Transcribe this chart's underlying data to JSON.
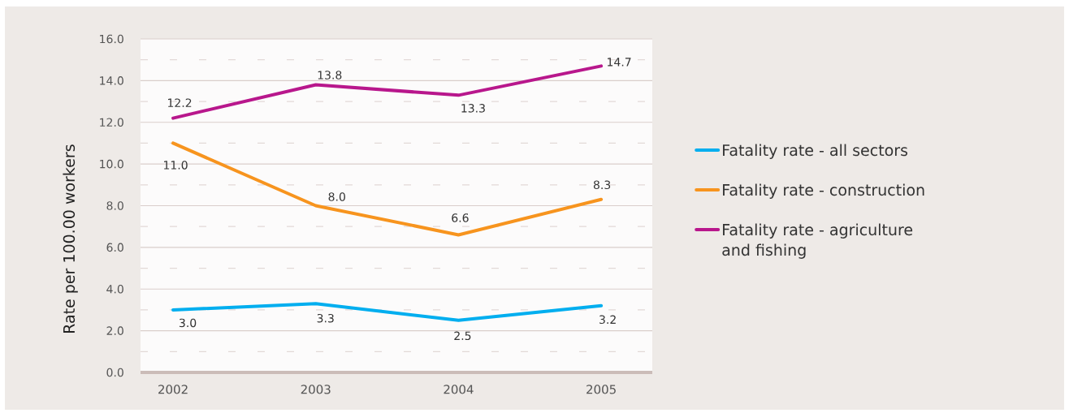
{
  "chart_data": {
    "type": "line",
    "categories": [
      "2002",
      "2003",
      "2004",
      "2005"
    ],
    "ylabel": "Rate per 100.00 workers",
    "ylim": [
      0,
      16
    ],
    "yticks": [
      {
        "value": 0,
        "label": "0.0"
      },
      {
        "value": 2,
        "label": "2.0"
      },
      {
        "value": 4,
        "label": "4.0"
      },
      {
        "value": 6,
        "label": "6.0"
      },
      {
        "value": 8,
        "label": "8.0"
      },
      {
        "value": 10,
        "label": "10.0"
      },
      {
        "value": 12,
        "label": "12.0"
      },
      {
        "value": 14,
        "label": "14.0"
      },
      {
        "value": 16,
        "label": "16.0"
      }
    ],
    "series": [
      {
        "name": "Fatality rate - all sectors",
        "color": "#00aeef",
        "values": [
          3.0,
          3.3,
          2.5,
          3.2
        ],
        "value_labels": [
          "3.0",
          "3.3",
          "2.5",
          "3.2"
        ]
      },
      {
        "name": "Fatality rate - construction",
        "color": "#f7941e",
        "values": [
          11.0,
          8.0,
          6.6,
          8.3
        ],
        "value_labels": [
          "11.0",
          "8.0",
          "6.6",
          "8.3"
        ]
      },
      {
        "name": "Fatality rate - agriculture and fishing",
        "color": "#b8178c",
        "values": [
          12.2,
          13.8,
          13.3,
          14.7
        ],
        "value_labels": [
          "12.2",
          "13.8",
          "13.3",
          "14.7"
        ]
      }
    ],
    "grid": "y",
    "legend": "right"
  }
}
